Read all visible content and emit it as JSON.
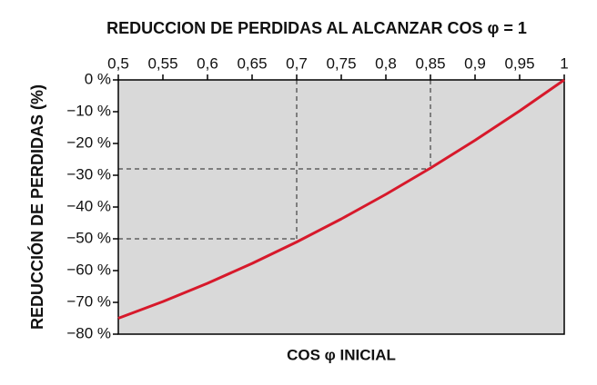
{
  "chart_data": {
    "type": "line",
    "title": "REDUCCION DE PERDIDAS AL ALCANZAR COS φ = 1",
    "x_label": "COS φ INICIAL",
    "y_label": "REDUCCIÓN DE PERDIDAS (%)",
    "x": [
      0.5,
      0.55,
      0.6,
      0.65,
      0.7,
      0.75,
      0.8,
      0.85,
      0.9,
      0.95,
      1
    ],
    "series": [
      {
        "color": "#d7192b",
        "values": [
          -75,
          -69.75,
          -64,
          -57.75,
          -51,
          -43.75,
          -36,
          -27.75,
          -19,
          -9.75,
          0
        ]
      }
    ],
    "xlim": [
      0.5,
      1
    ],
    "xticks": [
      {
        "value": 0.5,
        "label": "0,5"
      },
      {
        "value": 0.55,
        "label": "0,55"
      },
      {
        "value": 0.6,
        "label": "0,6"
      },
      {
        "value": 0.65,
        "label": "0,65"
      },
      {
        "value": 0.7,
        "label": "0,7"
      },
      {
        "value": 0.75,
        "label": "0,75"
      },
      {
        "value": 0.8,
        "label": "0,8"
      },
      {
        "value": 0.85,
        "label": "0,85"
      },
      {
        "value": 0.9,
        "label": "0,9"
      },
      {
        "value": 0.95,
        "label": "0,95"
      },
      1
    ],
    "ylim": [
      -80,
      0
    ],
    "yticks": [
      {
        "value": 0,
        "label": "0 %"
      },
      {
        "value": -10,
        "label": "−10 %"
      },
      {
        "value": -20,
        "label": "−20 %"
      },
      {
        "value": -30,
        "label": "−30 %"
      },
      {
        "value": -40,
        "label": "−40 %"
      },
      {
        "value": -50,
        "label": "−50 %"
      },
      {
        "value": -60,
        "label": "−60 %"
      },
      {
        "value": -70,
        "label": "−70 %"
      },
      {
        "value": -80,
        "label": "−80 %"
      }
    ],
    "reference_lines": [
      {
        "x": 0.7,
        "y": -50
      },
      {
        "x": 0.85,
        "y": -28
      }
    ],
    "plot_background": "#d9d9d9"
  }
}
